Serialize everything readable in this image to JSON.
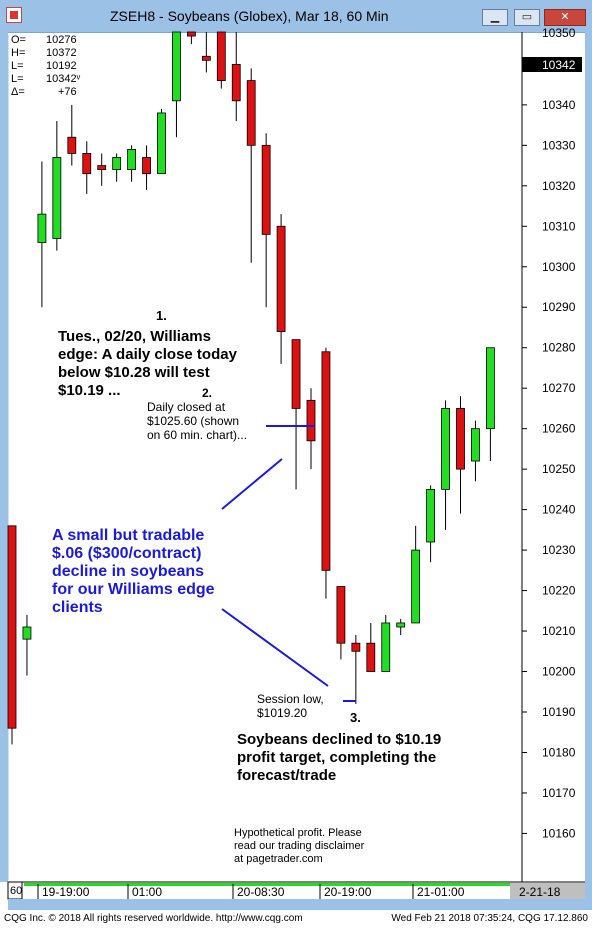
{
  "window": {
    "title": "ZSEH8 - Soybeans (Globex), Mar 18, 60 Min",
    "buttons": [
      "minimize",
      "restore",
      "close"
    ]
  },
  "ohlc_box": [
    {
      "label": "O=",
      "value": "10276"
    },
    {
      "label": "H=",
      "value": "10372"
    },
    {
      "label": "L=",
      "value": "10192"
    },
    {
      "label": "L=",
      "value": "10342ᵛ"
    },
    {
      "label": "Δ=",
      "value": "+76"
    }
  ],
  "price_axis": {
    "current_price_label": "10342",
    "top_partial_label": "10350"
  },
  "time_axis": {
    "corner_label": "60",
    "labels": [
      "19-19:00",
      "01:00",
      "20-08:30",
      "20-19:00",
      "21-01:00"
    ],
    "date_box": "2-21-18"
  },
  "annotations": {
    "n1": "1.",
    "n1_text": [
      "Tues., 02/20, Williams",
      "edge: A daily close today",
      "below $10.28 will test",
      "$10.19 ..."
    ],
    "n2": "2.",
    "n2_text": [
      "Daily closed at",
      "$1025.60 (shown",
      "on 60 min. chart)..."
    ],
    "blue_text": [
      "A small but tradable",
      "$.06 ($300/contract)",
      "decline in soybeans",
      "for our Williams edge",
      "clients"
    ],
    "session_low": [
      "Session low,",
      "$1019.20"
    ],
    "n3": "3.",
    "n3_text": [
      "Soybeans declined to $10.19",
      "profit target, completing the",
      "forecast/trade"
    ],
    "disclaimer": [
      "Hypothetical profit.  Please",
      "read our trading disclaimer",
      "at pagetrader.com"
    ]
  },
  "footer": {
    "left": "CQG Inc. © 2018 All rights reserved worldwide. http://www.cqg.com",
    "right": "Wed Feb 21 2018 07:35:24, CQG 17.12.860"
  },
  "colors": {
    "up": "#22dd22",
    "down": "#dd1111",
    "annotation_blue": "#1a1adf",
    "frame": "#9cc1e6"
  },
  "chart_data": {
    "type": "candlestick",
    "title": "ZSEH8 - Soybeans (Globex), Mar 18, 60 Min",
    "ylim": [
      10148,
      10358
    ],
    "y_ticks": [
      10340,
      10330,
      10320,
      10310,
      10300,
      10290,
      10280,
      10270,
      10260,
      10250,
      10240,
      10230,
      10220,
      10210,
      10200,
      10190,
      10180,
      10170,
      10160
    ],
    "candles": [
      {
        "o": 10236,
        "h": 10236,
        "l": 10182,
        "c": 10186
      },
      {
        "o": 10208,
        "h": 10214,
        "l": 10199,
        "c": 10211
      },
      {
        "o": 10306,
        "h": 10326,
        "l": 10290,
        "c": 10313
      },
      {
        "o": 10307,
        "h": 10336,
        "l": 10304,
        "c": 10327
      },
      {
        "o": 10332,
        "h": 10340,
        "l": 10325,
        "c": 10328
      },
      {
        "o": 10328,
        "h": 10331,
        "l": 10318,
        "c": 10323
      },
      {
        "o": 10325,
        "h": 10328,
        "l": 10320,
        "c": 10324
      },
      {
        "o": 10324,
        "h": 10328,
        "l": 10321,
        "c": 10327
      },
      {
        "o": 10324,
        "h": 10330,
        "l": 10321,
        "c": 10329
      },
      {
        "o": 10327,
        "h": 10330,
        "l": 10319,
        "c": 10323
      },
      {
        "o": 10323,
        "h": 10339,
        "l": 10323,
        "c": 10338
      },
      {
        "o": 10341,
        "h": 10372,
        "l": 10332,
        "c": 10364
      },
      {
        "o": 10360,
        "h": 10366,
        "l": 10355,
        "c": 10357
      },
      {
        "o": 10352,
        "h": 10362,
        "l": 10348,
        "c": 10351
      },
      {
        "o": 10360,
        "h": 10362,
        "l": 10344,
        "c": 10346
      },
      {
        "o": 10350,
        "h": 10362,
        "l": 10336,
        "c": 10341
      },
      {
        "o": 10346,
        "h": 10349,
        "l": 10301,
        "c": 10330
      },
      {
        "o": 10330,
        "h": 10333,
        "l": 10290,
        "c": 10308
      },
      {
        "o": 10310,
        "h": 10313,
        "l": 10276,
        "c": 10284
      },
      {
        "o": 10282,
        "h": 10282,
        "l": 10245,
        "c": 10265
      },
      {
        "o": 10267,
        "h": 10270,
        "l": 10250,
        "c": 10257
      },
      {
        "o": 10279,
        "h": 10280,
        "l": 10218,
        "c": 10225
      },
      {
        "o": 10221,
        "h": 10221,
        "l": 10203,
        "c": 10207
      },
      {
        "o": 10207,
        "h": 10209,
        "l": 10192,
        "c": 10205
      },
      {
        "o": 10207,
        "h": 10212,
        "l": 10200,
        "c": 10200
      },
      {
        "o": 10200,
        "h": 10214,
        "l": 10200,
        "c": 10212
      },
      {
        "o": 10211,
        "h": 10213,
        "l": 10209,
        "c": 10212
      },
      {
        "o": 10212,
        "h": 10236,
        "l": 10212,
        "c": 10230
      },
      {
        "o": 10232,
        "h": 10246,
        "l": 10227,
        "c": 10245
      },
      {
        "o": 10245,
        "h": 10267,
        "l": 10235,
        "c": 10265
      },
      {
        "o": 10265,
        "h": 10268,
        "l": 10239,
        "c": 10250
      },
      {
        "o": 10252,
        "h": 10262,
        "l": 10247,
        "c": 10260
      },
      {
        "o": 10260,
        "h": 10280,
        "l": 10252,
        "c": 10280
      }
    ]
  }
}
